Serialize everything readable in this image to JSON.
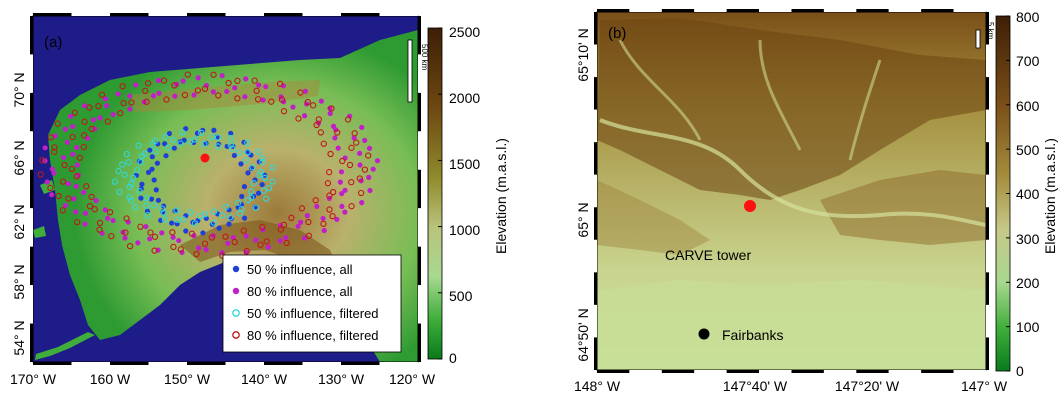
{
  "panel_a": {
    "label": "(a)",
    "x_ticks": [
      "170° W",
      "160 W",
      "150° W",
      "140° W",
      "130° W",
      "120° W"
    ],
    "y_ticks": [
      "54° N",
      "58° N",
      "62° N",
      "66° N",
      "70° N"
    ],
    "scalebar": "500 km",
    "colorbar": {
      "label": "Elevation (m.a.s.l.)",
      "ticks": [
        "0",
        "500",
        "1000",
        "1500",
        "2000",
        "2500"
      ],
      "range": [
        0,
        2500
      ]
    },
    "legend": [
      {
        "text": "50 % influence, all",
        "color": "#1f3fd8",
        "filled": true
      },
      {
        "text": "80 % influence, all",
        "color": "#c020c8",
        "filled": true
      },
      {
        "text": "50 % influence, filtered",
        "color": "#30d8d8",
        "filled": false
      },
      {
        "text": "80 % influence, filtered",
        "color": "#c01818",
        "filled": false
      }
    ],
    "tower_color": "#ff1010"
  },
  "panel_b": {
    "label": "(b)",
    "x_ticks": [
      "148° W",
      "147°40' W",
      "147°20' W",
      "147° W"
    ],
    "y_ticks": [
      "64°50' N",
      "65° N",
      "65°10' N"
    ],
    "scalebar": "5 km",
    "colorbar": {
      "label": "Elevation (m.a.s.l.)",
      "ticks": [
        "0",
        "100",
        "200",
        "300",
        "400",
        "500",
        "600",
        "700",
        "800"
      ],
      "range": [
        0,
        800
      ]
    },
    "sites": [
      {
        "name": "CARVE tower",
        "color": "#ff1010"
      },
      {
        "name": "Fairbanks",
        "color": "#000000"
      }
    ]
  }
}
